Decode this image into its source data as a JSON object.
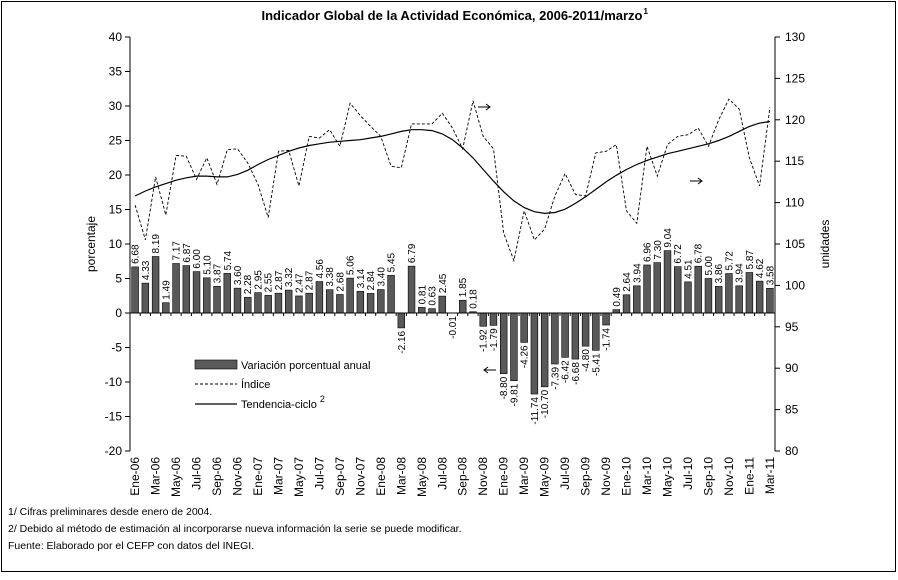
{
  "chart_data": {
    "type": "bar",
    "title": "Indicador Global de la Actividad Económica, 2006-2011/marzo",
    "title_superscript": "1",
    "categories": [
      "Ene-06",
      null,
      "Mar-06",
      null,
      "May-06",
      null,
      "Jul-06",
      null,
      "Sep-06",
      null,
      "Nov-06",
      null,
      "Ene-07",
      null,
      "Mar-07",
      null,
      "May-07",
      null,
      "Jul-07",
      null,
      "Sep-07",
      null,
      "Nov-07",
      null,
      "Ene-08",
      null,
      "Mar-08",
      null,
      "May-08",
      null,
      "Jul-08",
      null,
      "Sep-08",
      null,
      "Nov-08",
      null,
      "Ene-09",
      null,
      "Mar-09",
      null,
      "May-09",
      null,
      "Jul-09",
      null,
      "Sep-09",
      null,
      "Nov-09",
      null,
      "Ene-10",
      null,
      "Mar-10",
      null,
      "May-10",
      null,
      "Jul-10",
      null,
      "Sep-10",
      null,
      "Nov-10",
      null,
      "Ene-11",
      null,
      "Mar-11"
    ],
    "series": [
      {
        "name": "Variación porcentual anual",
        "color": "#595959",
        "values": [
          6.68,
          4.33,
          8.19,
          1.49,
          7.17,
          6.87,
          6.0,
          5.1,
          3.87,
          5.74,
          3.6,
          2.28,
          2.95,
          2.55,
          2.87,
          3.32,
          2.47,
          2.87,
          4.56,
          3.38,
          2.68,
          5.06,
          3.14,
          2.84,
          3.4,
          5.45,
          -2.16,
          6.79,
          0.81,
          0.63,
          2.45,
          -0.01,
          1.85,
          0.18,
          -1.92,
          -1.79,
          -8.8,
          -9.81,
          -4.26,
          -11.74,
          -10.7,
          -7.39,
          -6.42,
          -6.68,
          -4.8,
          -5.41,
          -1.74,
          0.49,
          2.64,
          3.94,
          6.96,
          7.3,
          9.04,
          6.72,
          4.51,
          6.78,
          5.0,
          3.86,
          5.72,
          3.94,
          5.87,
          4.62,
          3.58
        ],
        "value_labels": [
          "6.68",
          "4.33",
          "8.19",
          "1.49",
          "7.17",
          "6.87",
          "6.00",
          "5.10",
          "3.87",
          "5.74",
          "3.60",
          "2.28",
          "2.95",
          "2.55",
          "2.87",
          "3.32",
          "2.47",
          "2.87",
          "4.56",
          "3.38",
          "2.68",
          "5.06",
          "3.14",
          "2.84",
          "3.40",
          "5.45",
          "-2.16",
          "6.79",
          "0.81",
          "0.63",
          "2.45",
          "-0.01",
          "1.85",
          "0.18",
          "-1.92",
          "-1.79",
          "-8.80",
          "-9.81",
          "-4.26",
          "-11.74",
          "-10.70",
          "-7.39",
          "-6.42",
          "-6.68",
          "-4.80",
          "-5.41",
          "-1.74",
          "0.49",
          "2.64",
          "3.94",
          "6.96",
          "7.30",
          "9.04",
          "6.72",
          "4.51",
          "6.78",
          "5.00",
          "3.86",
          "5.72",
          "3.94",
          "5.87",
          "4.62",
          "3.58"
        ]
      },
      {
        "name": "Índice",
        "type": "line",
        "axis": "y2",
        "color": "#000000",
        "dashed": true,
        "values": [
          109.7,
          105.5,
          113.1,
          108.5,
          115.7,
          115.6,
          112.8,
          115.4,
          112.2,
          116.4,
          116.5,
          114.8,
          112.2,
          108.2,
          116.2,
          116.3,
          112.0,
          118.0,
          117.8,
          118.8,
          116.8,
          122.0,
          120.5,
          119.2,
          118.0,
          114.4,
          114.2,
          119.5,
          119.5,
          119.5,
          120.8,
          119.0,
          116.5,
          122.3,
          118.0,
          116.5,
          106.3,
          103.0,
          109.0,
          105.5,
          106.8,
          110.8,
          113.5,
          111.0,
          110.8,
          116.0,
          116.2,
          117.0,
          109.0,
          107.5,
          116.8,
          113.2,
          117.0,
          118.0,
          118.2,
          119.0,
          116.8,
          120.0,
          122.5,
          121.3,
          115.4,
          112.0,
          121.5
        ]
      },
      {
        "name": "Tendencia-ciclo",
        "name_superscript": "2",
        "type": "line",
        "axis": "y2",
        "color": "#000000",
        "dashed": false,
        "values": [
          110.8,
          111.4,
          111.9,
          112.3,
          112.7,
          113.0,
          113.2,
          113.2,
          113.1,
          113.1,
          113.4,
          113.9,
          114.6,
          115.2,
          115.7,
          116.2,
          116.6,
          116.9,
          117.1,
          117.3,
          117.4,
          117.5,
          117.6,
          117.8,
          118.0,
          118.3,
          118.6,
          118.8,
          118.8,
          118.7,
          118.3,
          117.6,
          116.6,
          115.4,
          114.0,
          112.6,
          111.3,
          110.2,
          109.4,
          108.9,
          108.7,
          108.8,
          109.2,
          109.9,
          110.7,
          111.6,
          112.5,
          113.3,
          114.0,
          114.6,
          115.1,
          115.5,
          115.9,
          116.2,
          116.5,
          116.8,
          117.1,
          117.5,
          118.0,
          118.6,
          119.2,
          119.6,
          119.8
        ]
      }
    ],
    "ylabel": "porcentaje",
    "y2label": "unidades",
    "ylim": [
      -20,
      40
    ],
    "yticks": [
      -20,
      -15,
      -10,
      -5,
      0,
      5,
      10,
      15,
      20,
      25,
      30,
      35,
      40
    ],
    "y2lim": [
      80,
      130
    ],
    "y2ticks": [
      80,
      85,
      90,
      95,
      100,
      105,
      110,
      115,
      120,
      125,
      130
    ],
    "notes": [
      "1/ Cifras preliminares desde enero de 2004.",
      "2/ Debido al método de estimación al incorporarse nueva información la serie se puede modificar.",
      "Fuente: Elaborado por el CEFP con datos del INEGI."
    ]
  }
}
